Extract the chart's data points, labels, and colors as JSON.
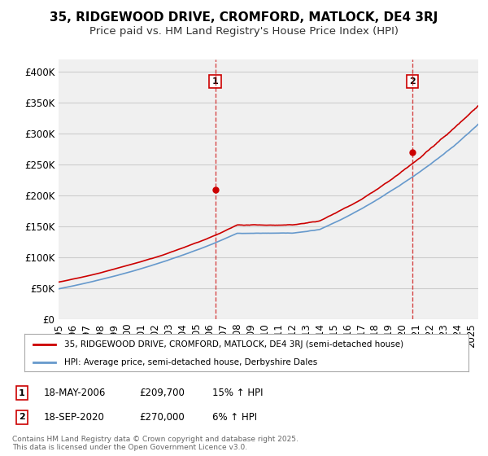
{
  "title": "35, RIDGEWOOD DRIVE, CROMFORD, MATLOCK, DE4 3RJ",
  "subtitle": "Price paid vs. HM Land Registry's House Price Index (HPI)",
  "ylabel_ticks": [
    "£0",
    "£50K",
    "£100K",
    "£150K",
    "£200K",
    "£250K",
    "£300K",
    "£350K",
    "£400K"
  ],
  "ytick_values": [
    0,
    50000,
    100000,
    150000,
    200000,
    250000,
    300000,
    350000,
    400000
  ],
  "ylim": [
    0,
    420000
  ],
  "xlim_start": 1995,
  "xlim_end": 2025.5,
  "sale1": {
    "date_year": 2006.38,
    "price": 209700,
    "label": "1",
    "text": "18-MAY-2006",
    "amount": "£209,700",
    "hpi_change": "15% ↑ HPI"
  },
  "sale2": {
    "date_year": 2020.72,
    "price": 270000,
    "label": "2",
    "text": "18-SEP-2020",
    "amount": "£270,000",
    "hpi_change": "6% ↑ HPI"
  },
  "line_color_red": "#cc0000",
  "line_color_blue": "#6699cc",
  "vline_color": "#cc0000",
  "background_color": "#f0f0f0",
  "grid_color": "#cccccc",
  "legend_label_red": "35, RIDGEWOOD DRIVE, CROMFORD, MATLOCK, DE4 3RJ (semi-detached house)",
  "legend_label_blue": "HPI: Average price, semi-detached house, Derbyshire Dales",
  "footer": "Contains HM Land Registry data © Crown copyright and database right 2025.\nThis data is licensed under the Open Government Licence v3.0.",
  "title_fontsize": 11,
  "subtitle_fontsize": 9.5,
  "tick_fontsize": 8.5
}
